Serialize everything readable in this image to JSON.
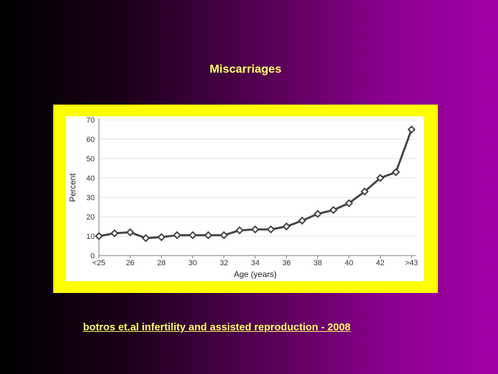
{
  "slide": {
    "title": "Miscarriages",
    "citation": "botros et.al  infertility and assisted reproduction  -  2008"
  },
  "colors": {
    "title_text": "#ffff66",
    "frame": "#ffff00",
    "line": "#444444"
  },
  "chart_data": {
    "type": "line",
    "title": "",
    "xlabel": "Age (years)",
    "ylabel": "Percent",
    "ylim": [
      0,
      70
    ],
    "yticks": [
      "0",
      "10",
      "20",
      "30",
      "40",
      "50",
      "60",
      "70"
    ],
    "xticks": [
      "<25",
      "26",
      "28",
      "30",
      "32",
      "34",
      "36",
      "38",
      "40",
      "42",
      ">43"
    ],
    "categories": [
      "<25",
      "25",
      "26",
      "27",
      "28",
      "29",
      "30",
      "31",
      "32",
      "33",
      "34",
      "35",
      "36",
      "37",
      "38",
      "39",
      "40",
      "41",
      "42",
      "43",
      ">43"
    ],
    "values": [
      10,
      11.5,
      12,
      9,
      9.5,
      10.5,
      10.5,
      10.5,
      10.5,
      13,
      13.5,
      13.5,
      15,
      18,
      21.5,
      23.5,
      27,
      33,
      40,
      43,
      65
    ],
    "grid": true,
    "legend": "none",
    "marker": "diamond"
  }
}
